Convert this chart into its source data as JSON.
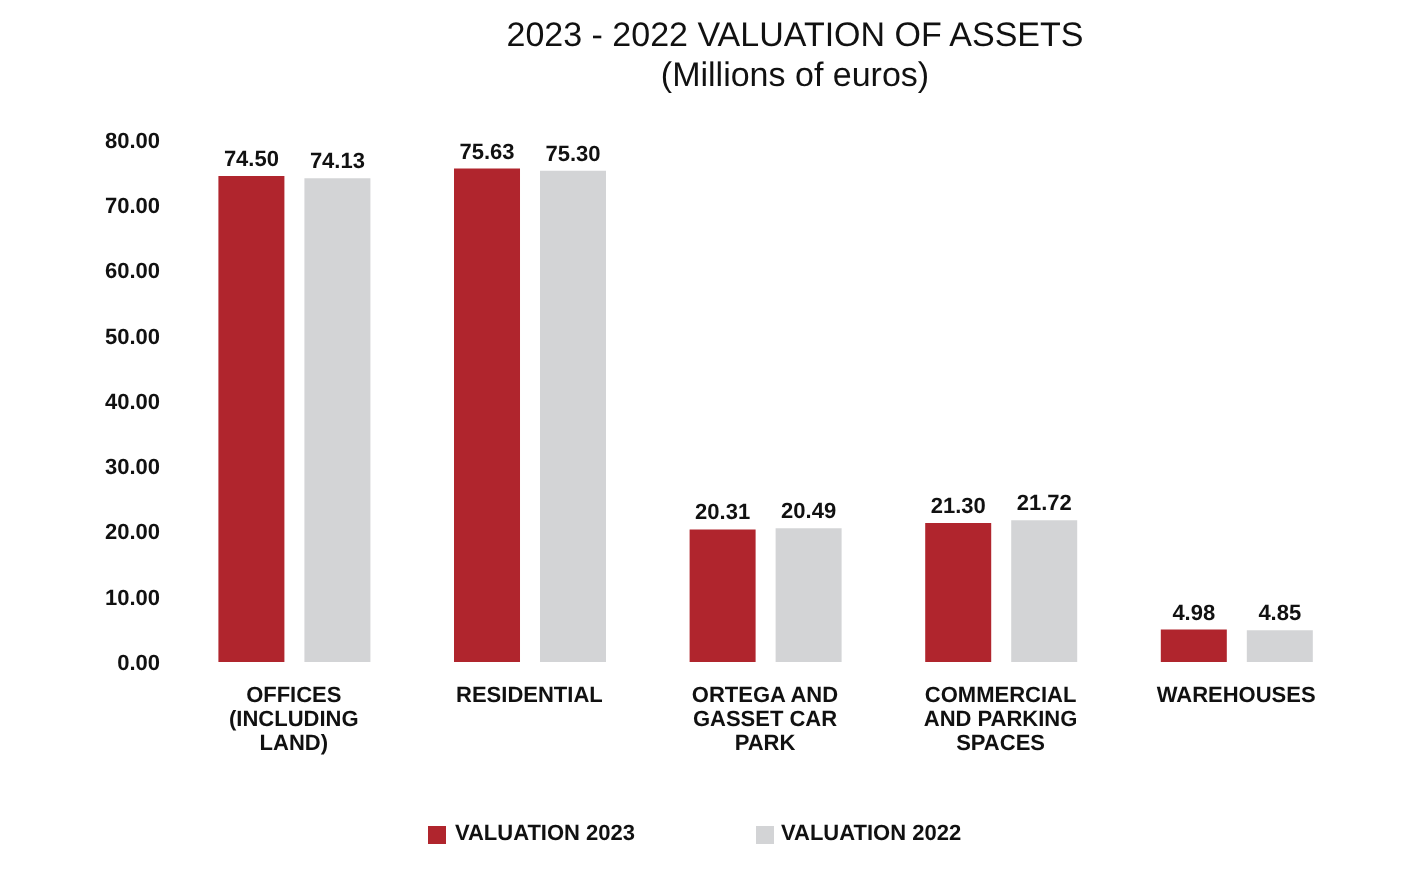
{
  "chart_data": {
    "type": "bar",
    "title": "2023 - 2022 VALUATION OF ASSETS",
    "subtitle": "(Millions of euros)",
    "categories": [
      "OFFICES (INCLUDING LAND)",
      "RESIDENTIAL",
      "ORTEGA AND GASSET CAR PARK",
      "COMMERCIAL AND PARKING SPACES",
      "WAREHOUSES"
    ],
    "series": [
      {
        "name": "VALUATION 2023",
        "color": "#b0252d",
        "values": [
          74.5,
          75.63,
          20.31,
          21.3,
          4.98
        ],
        "value_labels": [
          "74.50",
          "75.63",
          "20.31",
          "21.30",
          "4.98"
        ]
      },
      {
        "name": "VALUATION 2022",
        "color": "#d3d4d6",
        "values": [
          74.13,
          75.3,
          20.49,
          21.72,
          4.85
        ],
        "value_labels": [
          "74.13",
          "75.30",
          "20.49",
          "21.72",
          "4.85"
        ]
      }
    ],
    "ylim": [
      0,
      80
    ],
    "yticks": [
      {
        "value": 0,
        "label": "0.00"
      },
      {
        "value": 10,
        "label": "10.00"
      },
      {
        "value": 20,
        "label": "20.00"
      },
      {
        "value": 30,
        "label": "30.00"
      },
      {
        "value": 40,
        "label": "40.00"
      },
      {
        "value": 50,
        "label": "50.00"
      },
      {
        "value": 60,
        "label": "60.00"
      },
      {
        "value": 70,
        "label": "70.00"
      },
      {
        "value": 80,
        "label": "80.00"
      }
    ],
    "grid": false,
    "legend": "bottom"
  }
}
